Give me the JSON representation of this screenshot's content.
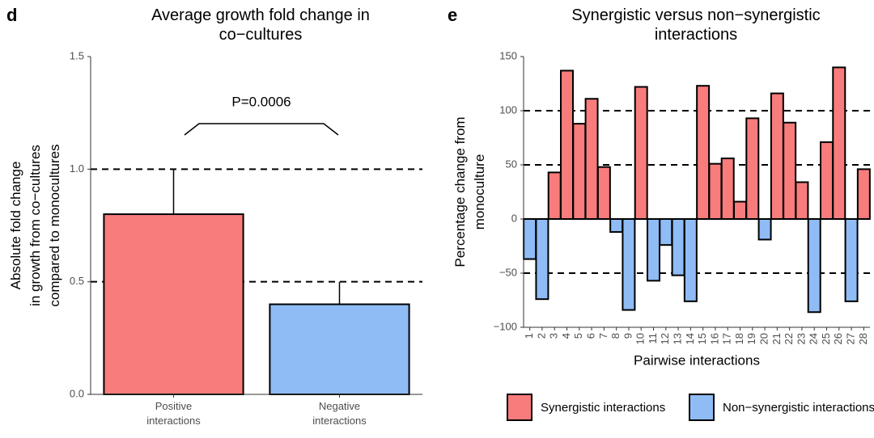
{
  "chart_data": [
    {
      "type": "bar",
      "panel": "d",
      "title": "Average growth fold change in\nco−cultures",
      "y_label": "Absolute fold change\nin growth from co−cultures\ncompared to monocultures",
      "categories": [
        "Positive\ninteractions",
        "Negative\ninteractions"
      ],
      "values": [
        0.8,
        0.4
      ],
      "errors": [
        0.2,
        0.1
      ],
      "colors": [
        "#f87c7c",
        "#8fbcf5"
      ],
      "ylim": [
        0,
        1.5
      ],
      "yticks": [
        {
          "value": 0,
          "label": "0.0"
        },
        {
          "value": 0.5,
          "label": "0.5"
        },
        {
          "value": 1,
          "label": "1.0"
        },
        {
          "value": 1.5,
          "label": "1.5"
        }
      ],
      "reference_lines": [
        0.5,
        1
      ],
      "annotation": "P=0.0006"
    },
    {
      "type": "bar",
      "panel": "e",
      "title": "Synergistic versus non−synergistic\ninteractions",
      "y_label": "Percentage change from\nmonoculture",
      "x_label": "Pairwise interactions",
      "categories": [
        "1",
        "2",
        "3",
        "4",
        "5",
        "6",
        "7",
        "8",
        "9",
        "10",
        "11",
        "12",
        "13",
        "14",
        "15",
        "16",
        "17",
        "18",
        "19",
        "20",
        "21",
        "22",
        "23",
        "24",
        "25",
        "26",
        "27",
        "28"
      ],
      "series": [
        {
          "name": "Synergistic interactions",
          "color": "#f87c7c",
          "values": [
            null,
            null,
            43,
            137,
            88,
            111,
            48,
            null,
            null,
            122,
            null,
            null,
            null,
            null,
            123,
            51,
            56,
            16,
            93,
            null,
            116,
            89,
            34,
            null,
            71,
            140,
            null,
            46
          ]
        },
        {
          "name": "Non−synergistic interactions",
          "color": "#8fbcf5",
          "values": [
            -37,
            -74,
            null,
            null,
            null,
            null,
            null,
            -12,
            -84,
            null,
            -57,
            -24,
            -52,
            -76,
            null,
            null,
            null,
            null,
            null,
            -19,
            null,
            null,
            null,
            -86,
            null,
            null,
            -76,
            null
          ]
        }
      ],
      "ylim": [
        -100,
        150
      ],
      "yticks": [
        {
          "value": -100,
          "label": "−100"
        },
        {
          "value": -50,
          "label": "−50"
        },
        0,
        50,
        100,
        150
      ],
      "reference_lines": [
        -50,
        50,
        100
      ]
    }
  ]
}
